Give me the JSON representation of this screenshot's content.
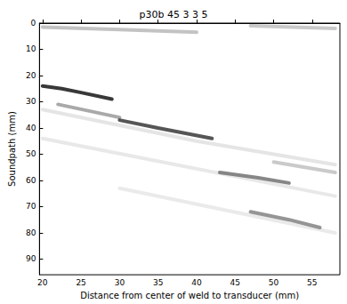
{
  "chart_data": {
    "type": "line",
    "title": "p30b 45 3 3 5",
    "x_label": "Distance from center of weld to transducer (mm)",
    "y_label": "Soundpath (mm)",
    "xlim": [
      19.6,
      58.6
    ],
    "xticks": [
      20,
      25,
      30,
      35,
      40,
      45,
      50,
      55
    ],
    "ylim": [
      0,
      96
    ],
    "yticks": [
      0,
      10,
      20,
      30,
      40,
      50,
      60,
      70,
      80,
      90
    ],
    "grid": false,
    "series": [
      {
        "color": "#e2e2e2",
        "x": [
          20,
          40,
          58
        ],
        "values": [
          33,
          45,
          54
        ]
      },
      {
        "color": "#e6e6e6",
        "x": [
          20,
          58
        ],
        "values": [
          44,
          66
        ]
      },
      {
        "color": "#e8e8e8",
        "x": [
          30,
          58
        ],
        "values": [
          63,
          80
        ]
      },
      {
        "color": "#bdbdbd",
        "x": [
          20,
          30,
          40
        ],
        "values": [
          1.5,
          2.5,
          3.5
        ]
      },
      {
        "color": "#c4c4c4",
        "x": [
          47,
          58
        ],
        "values": [
          1,
          2
        ]
      },
      {
        "color": "#c4c4c4",
        "x": [
          50,
          58
        ],
        "values": [
          53,
          57
        ]
      },
      {
        "color": "#a0a0a0",
        "x": [
          22,
          30
        ],
        "values": [
          31,
          36
        ]
      },
      {
        "color": "#222222",
        "x": [
          20,
          22.5,
          25,
          29
        ],
        "values": [
          24,
          25,
          26.5,
          29
        ]
      },
      {
        "color": "#444444",
        "x": [
          30,
          35,
          42
        ],
        "values": [
          37,
          40,
          44
        ]
      },
      {
        "color": "#7a7a7a",
        "x": [
          43,
          48,
          52
        ],
        "values": [
          57,
          59,
          61
        ]
      },
      {
        "color": "#8a8a8a",
        "x": [
          47,
          52,
          56
        ],
        "values": [
          72,
          75,
          78
        ]
      }
    ]
  }
}
